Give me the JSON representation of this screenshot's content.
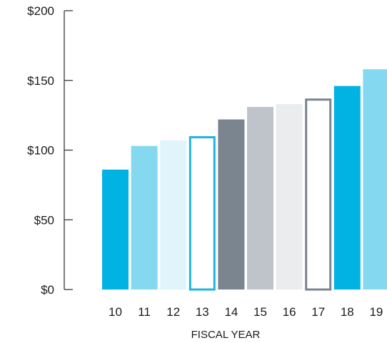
{
  "chart_data": {
    "type": "bar",
    "xlabel": "FISCAL YEAR",
    "ylabel": "",
    "categories": [
      "10",
      "11",
      "12",
      "13",
      "14",
      "15",
      "16",
      "17",
      "18",
      "19"
    ],
    "values": [
      86,
      103,
      107,
      110,
      122,
      131,
      133,
      137,
      146,
      158
    ],
    "ylim": [
      0,
      200
    ],
    "yticks": [
      0,
      50,
      100,
      150,
      200
    ],
    "ytick_labels": [
      "$0",
      "$50",
      "$100",
      "$150",
      "$200"
    ],
    "grid": false,
    "bar_styles": [
      {
        "fill": "#00b3e3",
        "stroke": "none"
      },
      {
        "fill": "#84d9f1",
        "stroke": "none"
      },
      {
        "fill": "#e0f4fb",
        "stroke": "none"
      },
      {
        "fill": "#ffffff",
        "stroke": "#1eb3e0"
      },
      {
        "fill": "#7a8590",
        "stroke": "none"
      },
      {
        "fill": "#bfc4ca",
        "stroke": "none"
      },
      {
        "fill": "#ebecee",
        "stroke": "none"
      },
      {
        "fill": "#ffffff",
        "stroke": "#7a8590"
      },
      {
        "fill": "#00b3e3",
        "stroke": "none"
      },
      {
        "fill": "#84d9f1",
        "stroke": "none"
      }
    ]
  }
}
